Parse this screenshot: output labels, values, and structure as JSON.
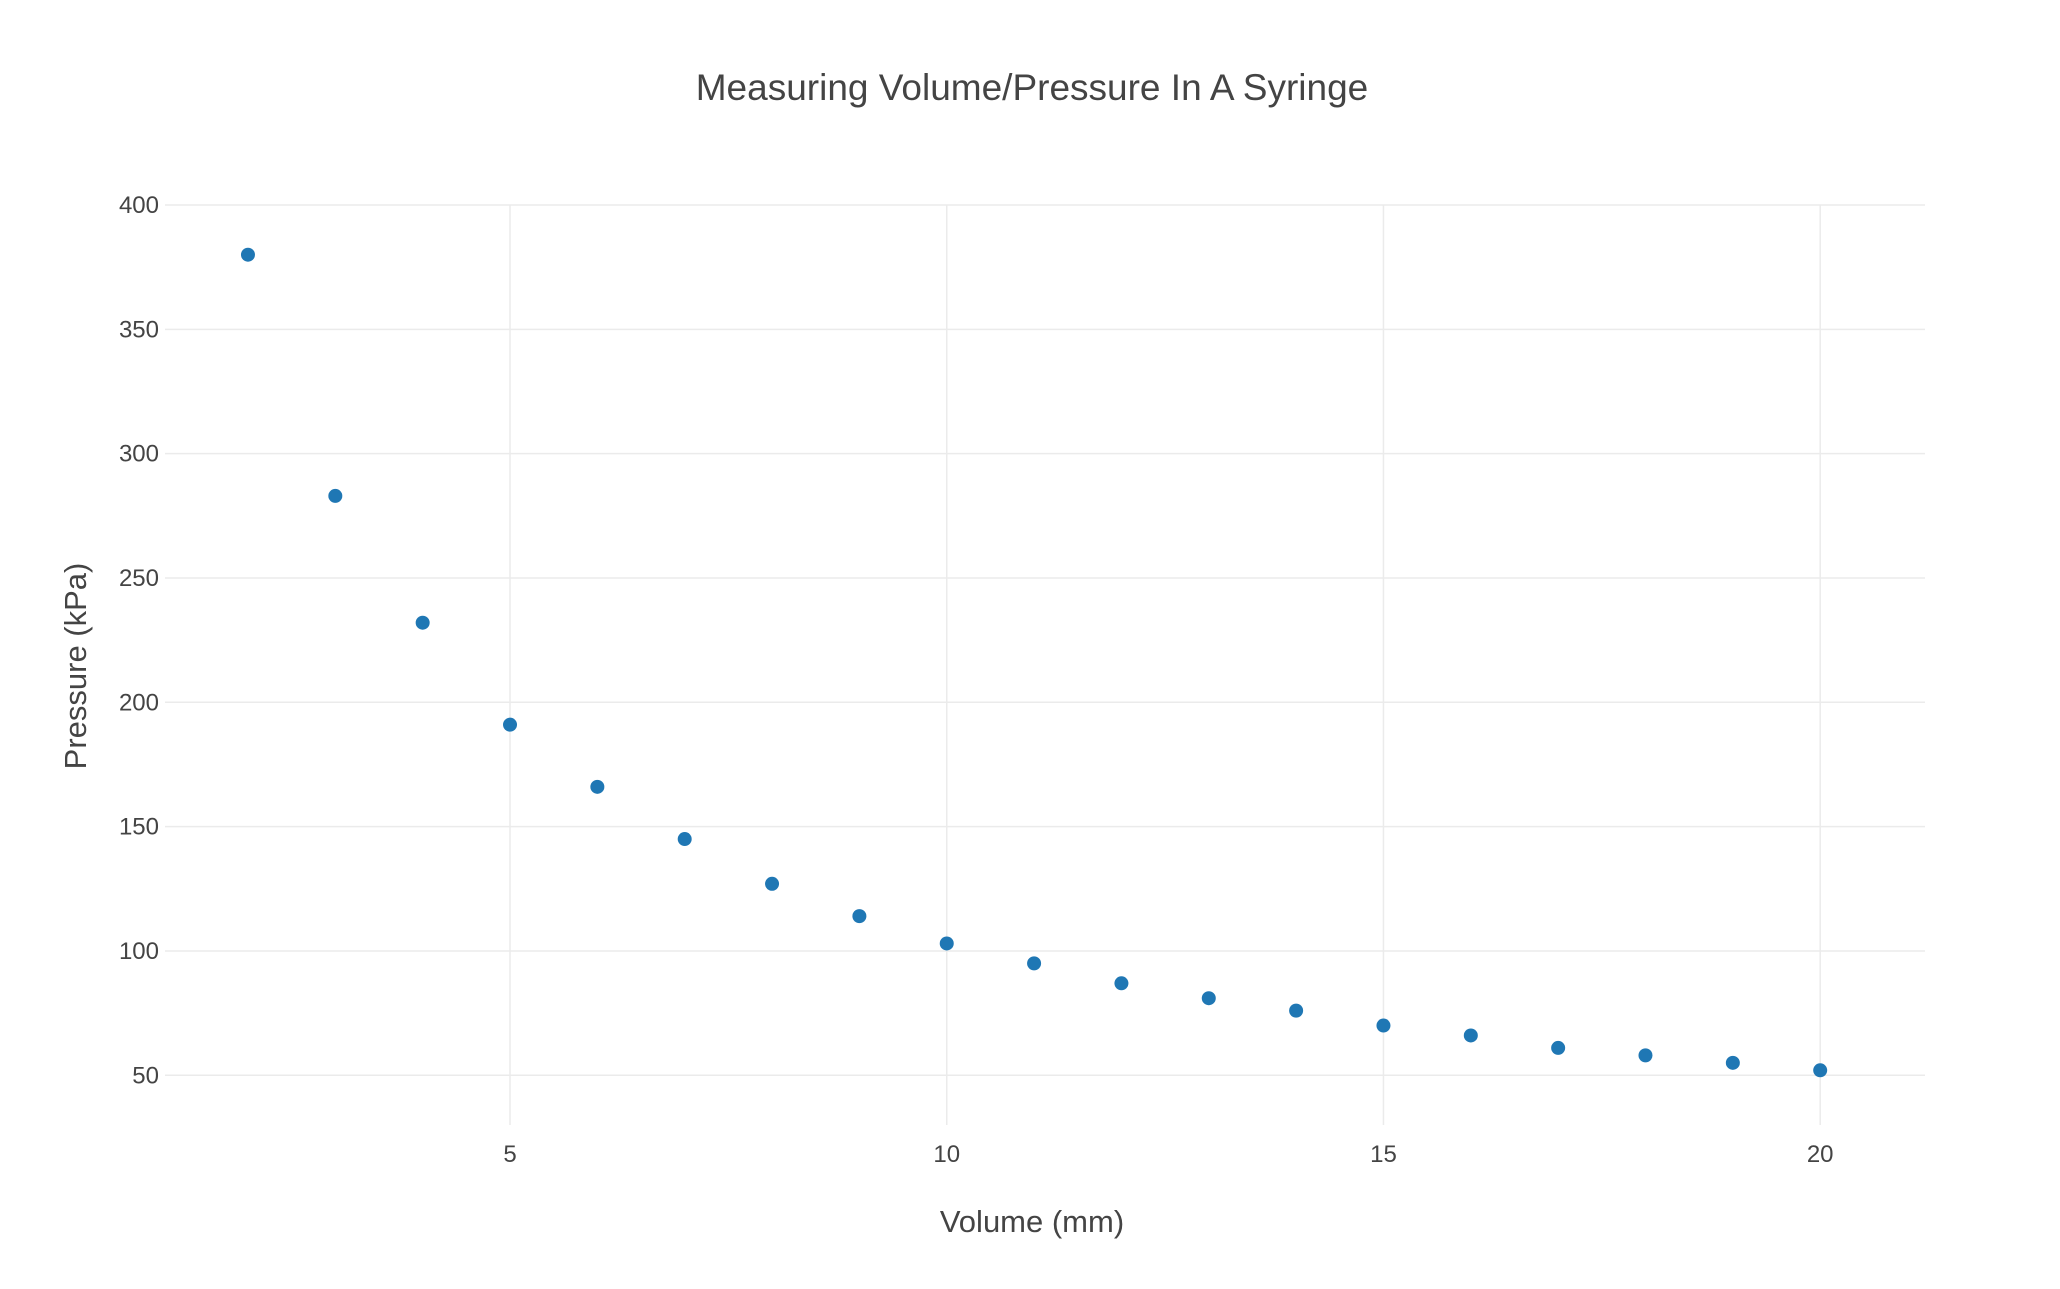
{
  "chart_data": {
    "type": "scatter",
    "title": "Measuring Volume/Pressure In A Syringe",
    "xlabel": "Volume (mm)",
    "ylabel": "Pressure (kPa)",
    "xlim": [
      1.05,
      21.2
    ],
    "ylim": [
      30,
      400
    ],
    "xticks": [
      5,
      10,
      15,
      20
    ],
    "yticks": [
      50,
      100,
      150,
      200,
      250,
      300,
      350,
      400
    ],
    "grid": true,
    "legend": "none",
    "marker_color": "#1f77b4",
    "series": [
      {
        "x": [
          2,
          3,
          4,
          5,
          6,
          7,
          8,
          9,
          10,
          11,
          12,
          13,
          14,
          15,
          16,
          17,
          18,
          19,
          20
        ],
        "y": [
          380,
          283,
          232,
          191,
          166,
          145,
          127,
          114,
          103,
          95,
          87,
          81,
          76,
          70,
          66,
          61,
          58,
          55,
          52
        ]
      }
    ]
  }
}
